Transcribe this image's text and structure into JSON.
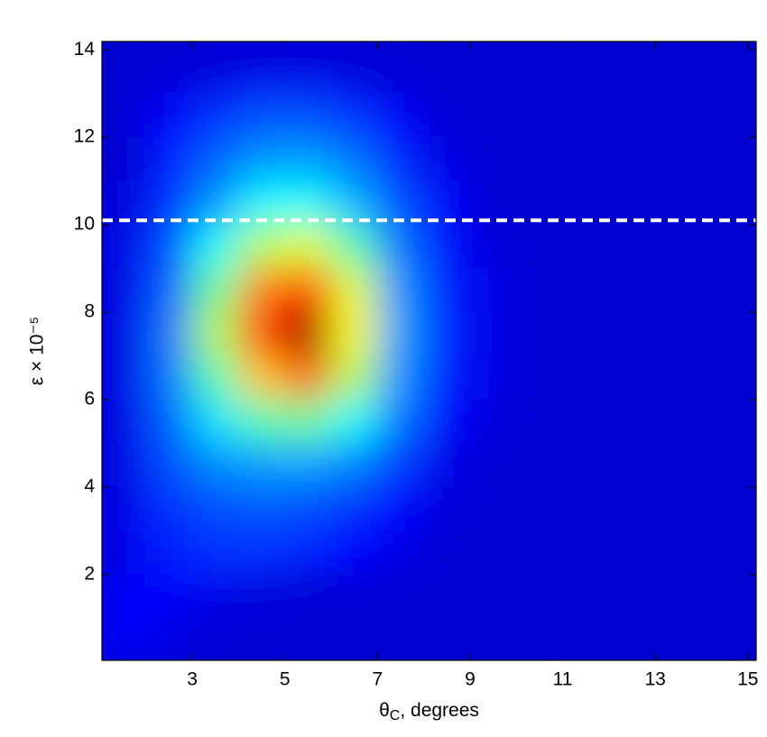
{
  "chart_data": {
    "type": "heatmap",
    "xlabel": {
      "symbol": "θ",
      "subscript": "C",
      "text": ", degrees"
    },
    "ylabel": "ε × 10⁻⁵",
    "colormap": "jet",
    "zlim": [
      0,
      1
    ],
    "x": [
      1.5,
      2.5,
      3.5,
      4.5,
      5.5,
      6.5,
      7.5,
      8.5,
      9.5,
      10.5,
      11.5,
      12.5,
      13.5,
      14.5,
      15.5
    ],
    "y": [
      14.5,
      13.5,
      12.5,
      11.5,
      10.5,
      9.5,
      8.5,
      7.5,
      6.5,
      5.5,
      4.5,
      3.5,
      2.5,
      1.5,
      0.5
    ],
    "z": [
      [
        0.08,
        0.08,
        0.08,
        0.08,
        0.08,
        0.08,
        0.08,
        0.08,
        0.08,
        0.08,
        0.08,
        0.08,
        0.08,
        0.08,
        0.08
      ],
      [
        0.08,
        0.08,
        0.09,
        0.1,
        0.1,
        0.09,
        0.08,
        0.08,
        0.08,
        0.08,
        0.08,
        0.08,
        0.08,
        0.08,
        0.08
      ],
      [
        0.08,
        0.12,
        0.17,
        0.2,
        0.2,
        0.17,
        0.12,
        0.08,
        0.08,
        0.08,
        0.08,
        0.08,
        0.08,
        0.08,
        0.08
      ],
      [
        0.08,
        0.15,
        0.22,
        0.27,
        0.28,
        0.24,
        0.16,
        0.1,
        0.08,
        0.08,
        0.08,
        0.08,
        0.08,
        0.08,
        0.08
      ],
      [
        0.09,
        0.17,
        0.27,
        0.37,
        0.38,
        0.3,
        0.2,
        0.12,
        0.08,
        0.08,
        0.08,
        0.08,
        0.08,
        0.08,
        0.08
      ],
      [
        0.1,
        0.2,
        0.38,
        0.55,
        0.6,
        0.45,
        0.24,
        0.14,
        0.09,
        0.08,
        0.08,
        0.08,
        0.08,
        0.08,
        0.08
      ],
      [
        0.1,
        0.22,
        0.48,
        0.75,
        0.85,
        0.6,
        0.27,
        0.15,
        0.1,
        0.08,
        0.08,
        0.08,
        0.08,
        0.08,
        0.08
      ],
      [
        0.1,
        0.24,
        0.55,
        0.82,
        0.97,
        0.62,
        0.28,
        0.16,
        0.1,
        0.08,
        0.08,
        0.08,
        0.08,
        0.08,
        0.08
      ],
      [
        0.1,
        0.24,
        0.45,
        0.68,
        0.78,
        0.55,
        0.27,
        0.15,
        0.1,
        0.08,
        0.08,
        0.08,
        0.08,
        0.08,
        0.08
      ],
      [
        0.1,
        0.22,
        0.35,
        0.45,
        0.48,
        0.38,
        0.24,
        0.13,
        0.09,
        0.08,
        0.08,
        0.08,
        0.08,
        0.08,
        0.08
      ],
      [
        0.1,
        0.2,
        0.26,
        0.28,
        0.28,
        0.25,
        0.18,
        0.1,
        0.08,
        0.08,
        0.08,
        0.08,
        0.08,
        0.08,
        0.08
      ],
      [
        0.1,
        0.17,
        0.2,
        0.21,
        0.2,
        0.17,
        0.13,
        0.09,
        0.08,
        0.08,
        0.08,
        0.08,
        0.08,
        0.08,
        0.08
      ],
      [
        0.1,
        0.15,
        0.17,
        0.17,
        0.16,
        0.13,
        0.1,
        0.08,
        0.08,
        0.08,
        0.08,
        0.08,
        0.08,
        0.08,
        0.08
      ],
      [
        0.12,
        0.12,
        0.1,
        0.09,
        0.08,
        0.08,
        0.08,
        0.08,
        0.08,
        0.08,
        0.08,
        0.08,
        0.08,
        0.08,
        0.08
      ],
      [
        0.12,
        0.1,
        0.08,
        0.08,
        0.08,
        0.08,
        0.08,
        0.08,
        0.08,
        0.08,
        0.08,
        0.08,
        0.08,
        0.08,
        0.08
      ]
    ],
    "hline": {
      "value": 10.1,
      "color": "#ffffff",
      "dashed": true
    },
    "xlim": [
      1.05,
      15.18
    ],
    "ylim": [
      0.04,
      14.19
    ],
    "xticks": [
      3,
      5,
      7,
      9,
      11,
      13,
      15
    ],
    "yticks": [
      2,
      4,
      6,
      8,
      10,
      12,
      14
    ]
  }
}
